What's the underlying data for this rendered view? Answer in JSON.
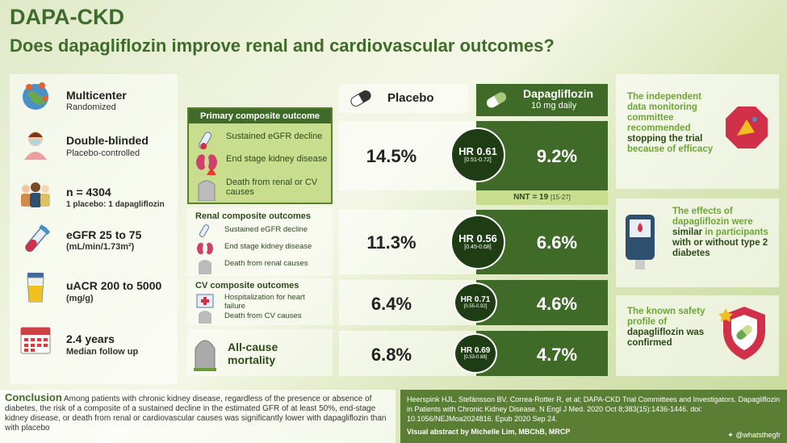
{
  "header": {
    "title": "DAPA-CKD",
    "subtitle": "Does dapagliflozin improve renal and cardiovascular outcomes?"
  },
  "design": [
    {
      "icon": "globe-pins-icon",
      "main": "Multicenter",
      "sub": "Randomized"
    },
    {
      "icon": "patient-icon",
      "main": "Double-blinded",
      "sub": "Placebo-controlled"
    },
    {
      "icon": "people-icon",
      "main": "n = 4304",
      "sub": "1 placebo: 1 dapagliflozin"
    },
    {
      "icon": "test-tube-icon",
      "main": "eGFR 25 to 75",
      "sub": "(mL/min/1.73m²)"
    },
    {
      "icon": "urine-cup-icon",
      "main": "uACR 200 to 5000",
      "sub": "(mg/g)"
    },
    {
      "icon": "calendar-icon",
      "main": "2.4 years",
      "sub": "Median follow up"
    }
  ],
  "columns": {
    "placebo": "Placebo",
    "dapagliflozin": "Dapagliflozin",
    "dapagliflozin_dose": "10 mg daily"
  },
  "primary": {
    "title": "Primary composite outcome",
    "items": [
      "Sustained eGFR decline",
      "End stage kidney disease",
      "Death from renal or CV causes"
    ],
    "placebo": "14.5%",
    "dapa": "9.2%",
    "hr": "HR 0.61",
    "ci": "[0.51-0.72]",
    "nnt": "NNT = 19",
    "nnt_ci": "[15-27]"
  },
  "renal": {
    "title": "Renal composite outcomes",
    "items": [
      "Sustained eGFR decline",
      "End stage kidney disease",
      "Death from renal causes"
    ],
    "placebo": "11.3%",
    "dapa": "6.6%",
    "hr": "HR 0.56",
    "ci": "[0.45-0.68]"
  },
  "cv": {
    "title": "CV composite outcomes",
    "items": [
      "Hospitalization for heart failure",
      "Death from CV causes"
    ],
    "placebo": "6.4%",
    "dapa": "4.6%",
    "hr": "HR 0.71",
    "ci": "[0.55-0.92]"
  },
  "mortality": {
    "label": "All-cause mortality",
    "placebo": "6.8%",
    "dapa": "4.7%",
    "hr": "HR 0.69",
    "ci": "[0.53-0.88]"
  },
  "right": {
    "box1": {
      "a": "The independent data monitoring committee recommended",
      "b": "stopping the trial",
      "c": "because of efficacy"
    },
    "box2": {
      "a": "The effects of dapagliflozin were",
      "b": "similar",
      "c": "in participants",
      "d": "with or without type 2 diabetes"
    },
    "box3": {
      "a": "The known safety profile of",
      "b": "dapagliflozin was confirmed"
    }
  },
  "conclusion": {
    "label": "Conclusion",
    "text": "Among patients with chronic kidney disease, regardless of the presence or absence of diabetes, the risk of a composite of a sustained decline in the estimated GFR of at least 50%, end-stage kidney disease, or death from renal or cardiovascular causes was significantly lower with dapagliflozin than with placebo"
  },
  "reference": {
    "text": "Heerspink HJL, Stefánsson BV, Correa-Rotter R, et al; DAPA-CKD Trial Committees and Investigators. Dapagliflozin in Patients with Chronic Kidney Disease. N Engl J Med. 2020 Oct 8;383(15):1436-1446. doi: 10.1056/NEJMoa2024816. Epub 2020 Sep 24.",
    "credit": "Visual abstract by Michelle Lim, MBChB, MRCP",
    "handle": "@whatsthegfr"
  }
}
